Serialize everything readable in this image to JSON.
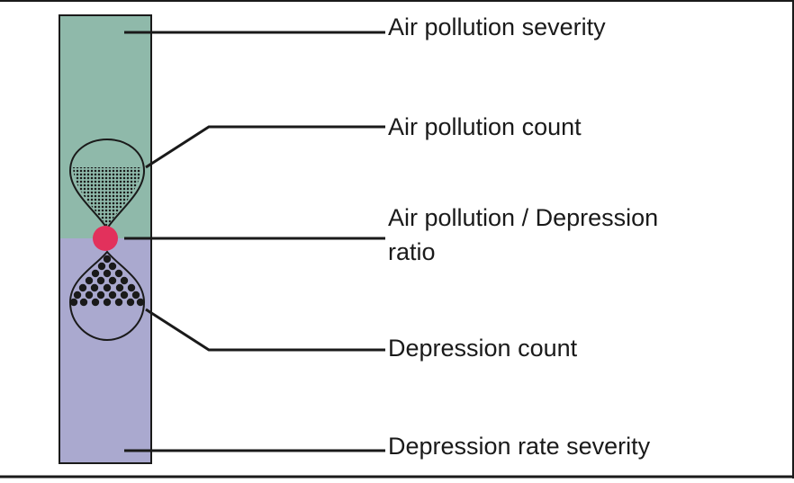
{
  "diagram": {
    "labels": {
      "air_pollution_severity": "Air pollution severity",
      "air_pollution_count": "Air pollution count",
      "ratio_line1": "Air pollution / Depression",
      "ratio_line2": "ratio",
      "depression_count": "Depression count",
      "depression_rate_severity": "Depression rate severity"
    },
    "colors": {
      "air_pollution_zone": "#8fb9aa",
      "depression_zone": "#aaa9cf",
      "ratio_marker": "#e2315c",
      "outline": "#1a1a1a",
      "dots": "#1a1a1a"
    }
  }
}
